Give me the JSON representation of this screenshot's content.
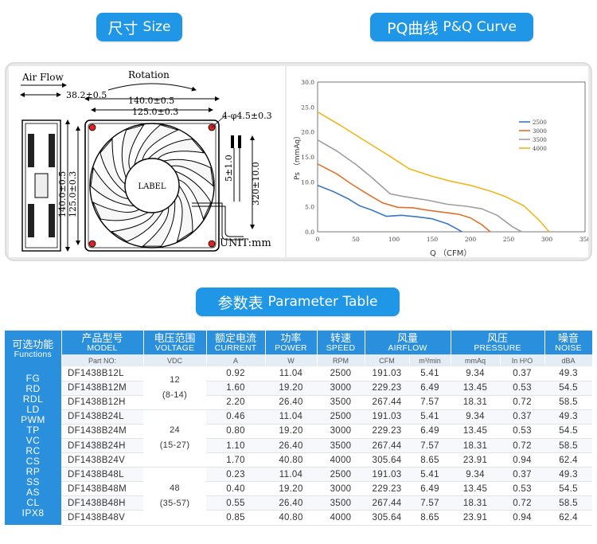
{
  "headers": {
    "size": {
      "cn": "尺寸",
      "en": "Size"
    },
    "pq": {
      "cn": "PQ曲线",
      "en": "P&Q Curve"
    },
    "table": {
      "cn": "参数表",
      "en": "Parameter Table"
    }
  },
  "drawing": {
    "air_flow": "Air Flow",
    "rotation": "Rotation",
    "depth": "38.2±0.5",
    "width_outer": "140.0±0.5",
    "width_hole": "125.0±0.3",
    "height_outer": "140.0±0.5",
    "height_hole": "125.0±0.3",
    "holes": "4-φ4.5±0.3",
    "wire_strip": "5±1.0",
    "wire_length": "320±10.0",
    "label": "LABEL",
    "unit": "UNIT:mm"
  },
  "colors": {
    "accent": "#1f96e6",
    "table_header": "#2a8fdc",
    "s2500": "#3a78c2",
    "s3000": "#e0712b",
    "s3500": "#9e9e9e",
    "s4000": "#f2b61d"
  },
  "chart_data": {
    "type": "line",
    "xlabel": "Q （CFM）",
    "ylabel": "Ps （mmAq）",
    "xlim": [
      0,
      350
    ],
    "ylim": [
      0,
      30
    ],
    "x_ticks": [
      "0",
      "50",
      "100",
      "150",
      "200",
      "250",
      "300",
      "350"
    ],
    "y_ticks": [
      "0.0",
      "5.0",
      "10.0",
      "15.0",
      "20.0",
      "25.0",
      "30.0"
    ],
    "legend_position": "right-middle",
    "series": [
      {
        "name": "2500",
        "color": "#3a78c2",
        "points": [
          [
            0,
            9.3
          ],
          [
            20,
            8.1
          ],
          [
            40,
            6.6
          ],
          [
            55,
            5.2
          ],
          [
            70,
            4.4
          ],
          [
            90,
            3.1
          ],
          [
            110,
            3.3
          ],
          [
            130,
            3.0
          ],
          [
            150,
            2.6
          ],
          [
            170,
            1.6
          ],
          [
            182,
            0.6
          ],
          [
            189,
            0
          ]
        ]
      },
      {
        "name": "3000",
        "color": "#e0712b",
        "points": [
          [
            0,
            13.6
          ],
          [
            25,
            11.6
          ],
          [
            45,
            9.5
          ],
          [
            65,
            7.6
          ],
          [
            85,
            5.8
          ],
          [
            105,
            4.9
          ],
          [
            125,
            4.8
          ],
          [
            145,
            4.3
          ],
          [
            165,
            3.9
          ],
          [
            185,
            3.5
          ],
          [
            200,
            2.8
          ],
          [
            215,
            1.4
          ],
          [
            226,
            0
          ]
        ]
      },
      {
        "name": "3500",
        "color": "#9e9e9e",
        "points": [
          [
            0,
            18.4
          ],
          [
            25,
            16.2
          ],
          [
            50,
            13.5
          ],
          [
            70,
            11.0
          ],
          [
            95,
            7.6
          ],
          [
            115,
            7.0
          ],
          [
            145,
            6.3
          ],
          [
            170,
            5.5
          ],
          [
            195,
            5.1
          ],
          [
            215,
            4.6
          ],
          [
            235,
            3.3
          ],
          [
            255,
            1.0
          ],
          [
            267,
            0
          ]
        ]
      },
      {
        "name": "4000",
        "color": "#f2b61d",
        "points": [
          [
            0,
            24.0
          ],
          [
            30,
            21.3
          ],
          [
            55,
            18.9
          ],
          [
            75,
            17.0
          ],
          [
            95,
            15.1
          ],
          [
            120,
            12.6
          ],
          [
            150,
            11.1
          ],
          [
            175,
            10.1
          ],
          [
            200,
            9.3
          ],
          [
            225,
            8.2
          ],
          [
            245,
            7.1
          ],
          [
            270,
            5.2
          ],
          [
            290,
            2.3
          ],
          [
            303,
            0
          ]
        ]
      }
    ]
  },
  "table": {
    "headers": [
      {
        "cn": "可选功能",
        "en": "Functions"
      },
      {
        "cn": "产品型号",
        "en": "MODEL"
      },
      {
        "cn": "电压范围",
        "en": "VOLTAGE"
      },
      {
        "cn": "额定电流",
        "en": "CURRENT"
      },
      {
        "cn": "功率",
        "en": "POWER"
      },
      {
        "cn": "转速",
        "en": "SPEED"
      },
      {
        "cn": "风量",
        "en": "AIRFLOW"
      },
      {
        "cn": "风压",
        "en": "PRESSURE"
      },
      {
        "cn": "噪音",
        "en": "NOISE"
      }
    ],
    "units": [
      "Part NO:",
      "VDC",
      "A",
      "W",
      "RPM",
      "CFM",
      "m³/min",
      "mmAq",
      "In H²O",
      "dBA"
    ],
    "functions": [
      "FG",
      "RD",
      "RDL",
      "LD",
      "PWM",
      "TP",
      "VC",
      "RC",
      "CS",
      "RP",
      "SS",
      "AS",
      "CL",
      "IPX8"
    ],
    "voltage_groups": [
      {
        "v": "12",
        "range": "(8-14)"
      },
      {
        "v": "24",
        "range": "(15-27)"
      },
      {
        "v": "48",
        "range": "(35-57)"
      }
    ],
    "rows": [
      [
        "DF1438B12L",
        "0.92",
        "11.04",
        "2500",
        "191.03",
        "5.41",
        "9.34",
        "0.37",
        "49.3"
      ],
      [
        "DF1438B12M",
        "1.60",
        "19.20",
        "3000",
        "229.23",
        "6.49",
        "13.45",
        "0.53",
        "54.5"
      ],
      [
        "DF1438B12H",
        "2.20",
        "26.40",
        "3500",
        "267.44",
        "7.57",
        "18.31",
        "0.72",
        "58.5"
      ],
      [
        "DF1438B24L",
        "0.46",
        "11.04",
        "2500",
        "191.03",
        "5.41",
        "9.34",
        "0.37",
        "49.3"
      ],
      [
        "DF1438B24M",
        "0.80",
        "19.20",
        "3000",
        "229.23",
        "6.49",
        "13.45",
        "0.53",
        "54.5"
      ],
      [
        "DF1438B24H",
        "1.10",
        "26.40",
        "3500",
        "267.44",
        "7.57",
        "18.31",
        "0.72",
        "58.5"
      ],
      [
        "DF1438B24V",
        "1.70",
        "40.80",
        "4000",
        "305.64",
        "8.65",
        "23.91",
        "0.94",
        "62.4"
      ],
      [
        "DF1438B48L",
        "0.23",
        "11.04",
        "2500",
        "191.03",
        "5.41",
        "9.34",
        "0.37",
        "49.3"
      ],
      [
        "DF1438B48M",
        "0.40",
        "19.20",
        "3000",
        "229.23",
        "6.49",
        "13.45",
        "0.53",
        "54.5"
      ],
      [
        "DF1438B48H",
        "0.55",
        "26.40",
        "3500",
        "267.44",
        "7.57",
        "18.31",
        "0.72",
        "58.5"
      ],
      [
        "DF1438B48V",
        "0.85",
        "40.80",
        "4000",
        "305.64",
        "8.65",
        "23.91",
        "0.94",
        "62.4"
      ]
    ]
  }
}
